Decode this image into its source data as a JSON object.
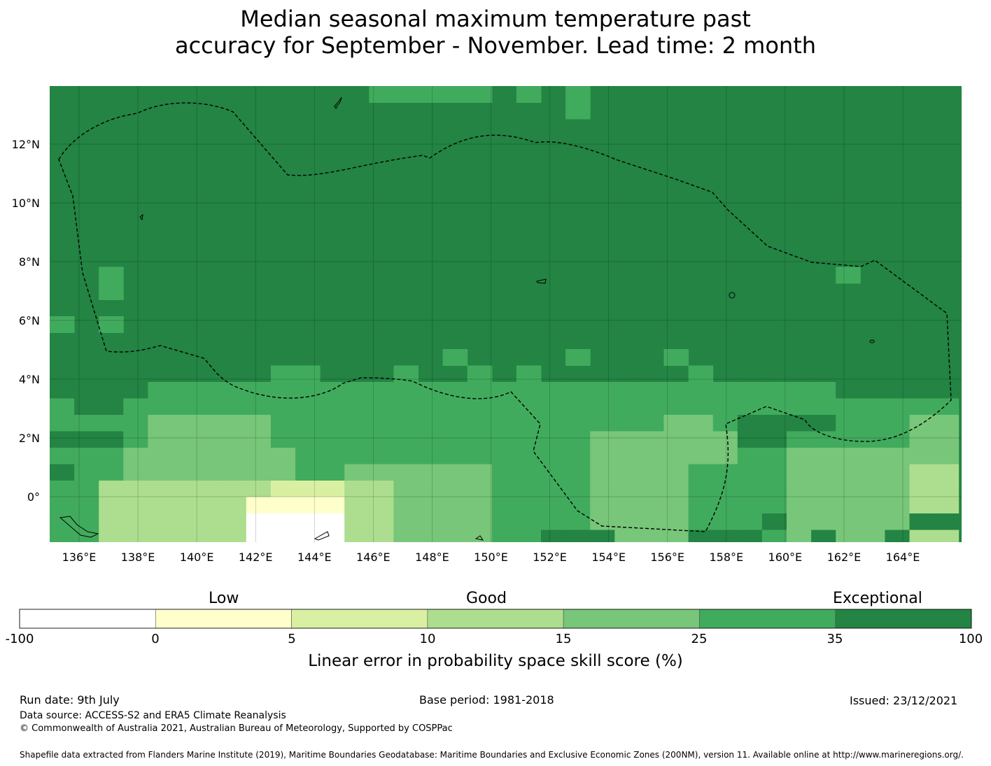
{
  "title": {
    "line1": "Median seasonal maximum temperature past",
    "line2": "accuracy for September - November. Lead time: 2 month"
  },
  "map": {
    "lon_labels": [
      "136°E",
      "138°E",
      "140°E",
      "142°E",
      "144°E",
      "146°E",
      "148°E",
      "150°E",
      "152°E",
      "154°E",
      "156°E",
      "158°E",
      "160°E",
      "162°E",
      "164°E"
    ],
    "lat_labels": [
      "12°N",
      "10°N",
      "8°N",
      "6°N",
      "4°N",
      "2°N",
      "0°"
    ],
    "base_color": "#238443"
  },
  "colorbar": {
    "categories": [
      "Low",
      "Good",
      "Exceptional"
    ],
    "ticks": [
      "-100",
      "0",
      "5",
      "10",
      "15",
      "25",
      "35",
      "100"
    ],
    "colors": [
      "#ffffff",
      "#ffffcc",
      "#d9f0a3",
      "#addd8e",
      "#78c679",
      "#41ab5d",
      "#238443"
    ],
    "title": "Linear error in probability space skill score (%)"
  },
  "footer": {
    "run_date": "Run date: 9th July",
    "base_period": "Base period: 1981-2018",
    "issued": "Issued: 23/12/2021",
    "data_source": "Data source: ACCESS-S2 and ERA5 Climate Reanalysis",
    "copyright": "© Commonwealth of Australia 2021, Australian Bureau of Meteorology, Supported by COSPPac",
    "shapefile": "Shapefile data extracted from Flanders Marine Institute (2019), Maritime Boundaries Geodatabase: Maritime Boundaries and Exclusive Economic Zones (200NM), version 11. Available online at http://www.marineregions.org/."
  }
}
